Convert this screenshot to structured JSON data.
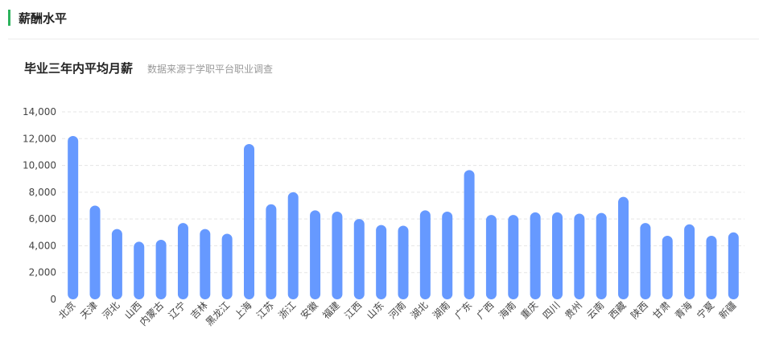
{
  "section": {
    "title": "薪酬水平"
  },
  "chart_header": {
    "title": "毕业三年内平均月薪",
    "subtitle": "数据来源于学职平台职业调查"
  },
  "colors": {
    "accent": "#2db35d",
    "bar": "#6699ff",
    "grid": "#e5e5e5"
  },
  "chart_data": {
    "type": "bar",
    "title": "毕业三年内平均月薪",
    "xlabel": "",
    "ylabel": "",
    "ylim": [
      0,
      14000
    ],
    "yticks": [
      0,
      2000,
      4000,
      6000,
      8000,
      10000,
      12000,
      14000
    ],
    "ytick_labels": [
      "0",
      "2,000",
      "4,000",
      "6,000",
      "8,000",
      "10,000",
      "12,000",
      "14,000"
    ],
    "grid": true,
    "categories": [
      "北京",
      "天津",
      "河北",
      "山西",
      "内蒙古",
      "辽宁",
      "吉林",
      "黑龙江",
      "上海",
      "江苏",
      "浙江",
      "安徽",
      "福建",
      "江西",
      "山东",
      "河南",
      "湖北",
      "湖南",
      "广东",
      "广西",
      "海南",
      "重庆",
      "四川",
      "贵州",
      "云南",
      "西藏",
      "陕西",
      "甘肃",
      "青海",
      "宁夏",
      "新疆"
    ],
    "values": [
      12200,
      7000,
      5250,
      4300,
      4450,
      5700,
      5250,
      4900,
      11600,
      7100,
      8000,
      6650,
      6550,
      6000,
      5550,
      5500,
      6650,
      6550,
      9650,
      6300,
      6300,
      6500,
      6500,
      6400,
      6450,
      7650,
      5700,
      4750,
      5600,
      4750,
      5000
    ]
  }
}
